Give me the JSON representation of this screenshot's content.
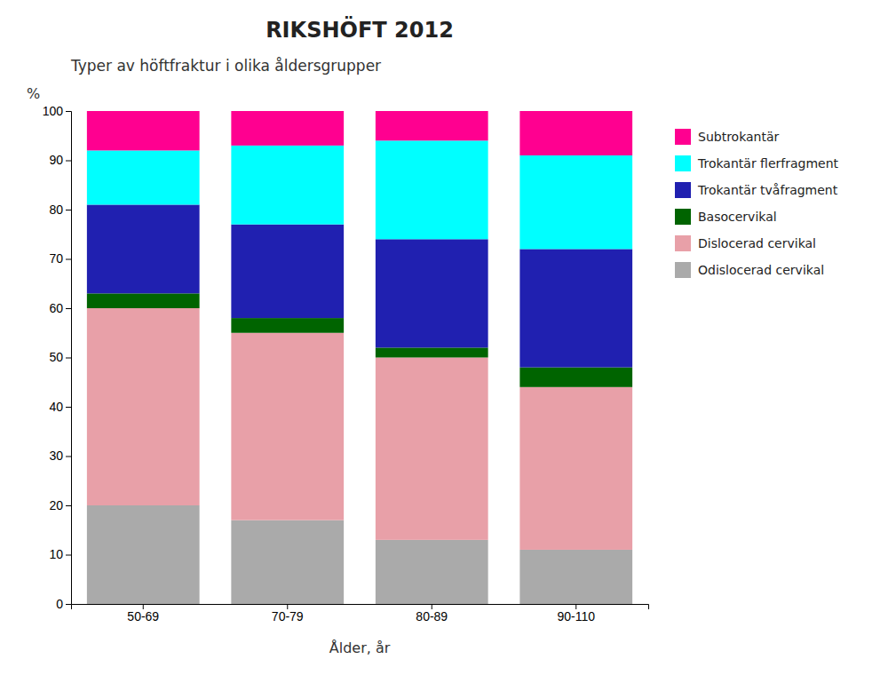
{
  "chart_data": {
    "type": "bar",
    "stacked": true,
    "title": "RIKSHÖFT 2012",
    "subtitle": "Typer av höftfraktur i olika åldersgrupper",
    "xlabel": "Ålder, år",
    "ylabel": "%",
    "categories": [
      "50-69",
      "70-79",
      "80-89",
      "90-110"
    ],
    "series": [
      {
        "name": "Odislocerad cervikal",
        "color": "#aaaaaa",
        "values": [
          20,
          17,
          13,
          11
        ]
      },
      {
        "name": "Dislocerad cervikal",
        "color": "#e8a0a8",
        "values": [
          40,
          38,
          37,
          33
        ]
      },
      {
        "name": "Basocervikal",
        "color": "#006400",
        "values": [
          3,
          3,
          2,
          4
        ]
      },
      {
        "name": "Trokantär tvåfragment",
        "color": "#2020b0",
        "values": [
          18,
          19,
          22,
          24
        ]
      },
      {
        "name": "Trokantär flerfragment",
        "color": "#00ffff",
        "values": [
          11,
          16,
          20,
          19
        ]
      },
      {
        "name": "Subtrokantär",
        "color": "#ff0090",
        "values": [
          8,
          7,
          6,
          9
        ]
      }
    ],
    "ylim": [
      0,
      100
    ],
    "yticks": [
      0,
      10,
      20,
      30,
      40,
      50,
      60,
      70,
      80,
      90,
      100
    ],
    "grid": false,
    "legend": "right"
  }
}
